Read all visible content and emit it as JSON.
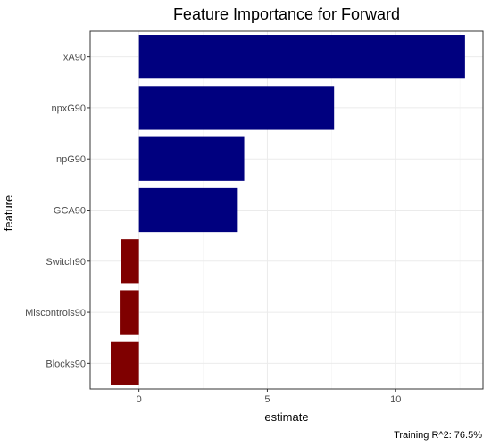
{
  "chart_data": {
    "type": "bar",
    "orientation": "horizontal",
    "title": "Feature Importance for Forward",
    "xlabel": "estimate",
    "ylabel": "feature",
    "caption": "Training R^2: 76.5%",
    "categories": [
      "xA90",
      "npxG90",
      "npG90",
      "GCA90",
      "Switch90",
      "Miscontrols90",
      "Blocks90"
    ],
    "values": [
      12.7,
      7.6,
      4.1,
      3.85,
      -0.7,
      -0.75,
      -1.1
    ],
    "xlim": [
      -1.9,
      13.4
    ],
    "xticks": [
      0,
      5,
      10
    ],
    "grid": true,
    "legend": "none",
    "colors": {
      "positive": "#00007F",
      "negative": "#7F0000"
    }
  }
}
